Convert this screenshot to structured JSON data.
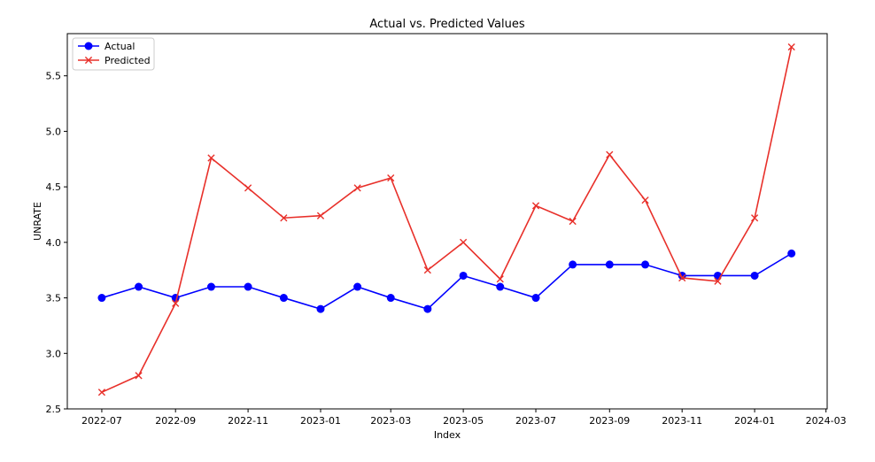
{
  "chart_data": {
    "type": "line",
    "title": "Actual vs. Predicted Values",
    "xlabel": "Index",
    "ylabel": "UNRATE",
    "x_ticks": [
      "2022-07",
      "2022-09",
      "2022-11",
      "2023-01",
      "2023-03",
      "2023-05",
      "2023-07",
      "2023-09",
      "2023-11",
      "2024-01",
      "2024-03"
    ],
    "y_ticks": [
      "2.5",
      "3.0",
      "3.5",
      "4.0",
      "4.5",
      "5.0",
      "5.5"
    ],
    "xlim": [
      "2022-06-02",
      "2024-03-02"
    ],
    "ylim": [
      2.5,
      5.88
    ],
    "x": [
      "2022-07-01",
      "2022-08-01",
      "2022-09-01",
      "2022-10-01",
      "2022-11-01",
      "2022-12-01",
      "2023-01-01",
      "2023-02-01",
      "2023-03-01",
      "2023-04-01",
      "2023-05-01",
      "2023-06-01",
      "2023-07-01",
      "2023-08-01",
      "2023-09-01",
      "2023-10-01",
      "2023-11-01",
      "2023-12-01",
      "2024-01-01",
      "2024-02-01"
    ],
    "series": [
      {
        "name": "Actual",
        "color": "#0000ff",
        "marker": "circle",
        "values": [
          3.5,
          3.6,
          3.5,
          3.6,
          3.6,
          3.5,
          3.4,
          3.6,
          3.5,
          3.4,
          3.7,
          3.6,
          3.5,
          3.8,
          3.8,
          3.8,
          3.7,
          3.7,
          3.7,
          3.9
        ]
      },
      {
        "name": "Predicted",
        "color": "#e8302a",
        "marker": "x",
        "values": [
          2.65,
          2.8,
          3.45,
          4.76,
          4.49,
          4.22,
          4.24,
          4.49,
          4.58,
          3.75,
          4.0,
          3.67,
          4.33,
          4.19,
          4.79,
          4.38,
          3.68,
          3.65,
          4.22,
          5.76
        ]
      }
    ],
    "legend_position": "top-left",
    "grid": false
  }
}
